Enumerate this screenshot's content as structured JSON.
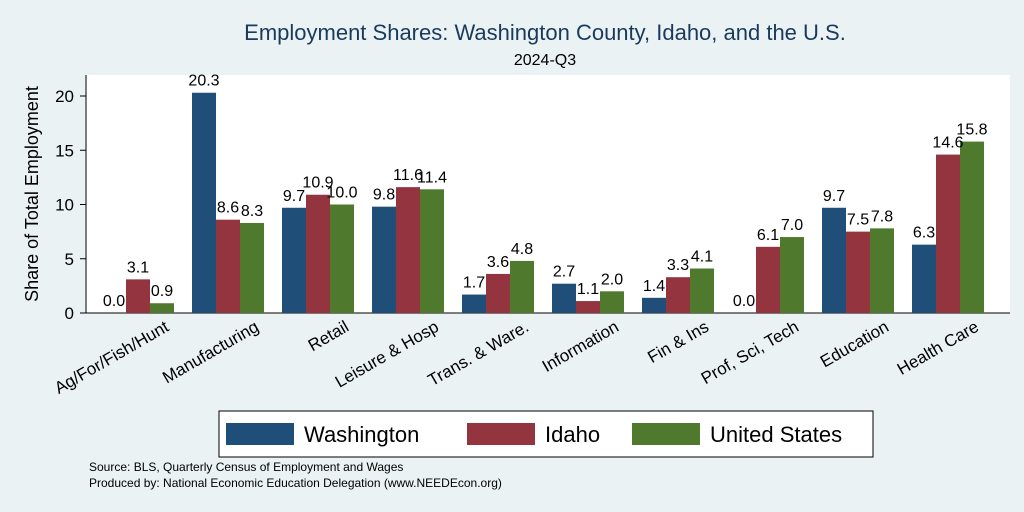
{
  "chart_data": {
    "type": "bar",
    "title": "Employment Shares: Washington County, Idaho, and the U.S.",
    "subtitle": "2024-Q3",
    "ylabel": "Share of Total Employment",
    "xlabel": "",
    "ylim": [
      0,
      22
    ],
    "yticks": [
      0,
      5,
      10,
      15,
      20
    ],
    "categories": [
      "Ag/For/Fish/Hunt",
      "Manufacturing",
      "Retail",
      "Leisure & Hosp",
      "Trans. & Ware.",
      "Information",
      "Fin & Ins",
      "Prof, Sci, Tech",
      "Education",
      "Health Care"
    ],
    "series": [
      {
        "name": "Washington",
        "color": "#1f4e79",
        "values": [
          0.0,
          20.3,
          9.7,
          9.8,
          1.7,
          2.7,
          1.4,
          0.0,
          9.7,
          6.3
        ],
        "labels": [
          "0.0",
          "20.3",
          "9.7",
          "9.8",
          "1.7",
          "2.7",
          "1.4",
          "0.0",
          "9.7",
          "6.3"
        ]
      },
      {
        "name": "Idaho",
        "color": "#93343f",
        "values": [
          3.1,
          8.6,
          10.9,
          11.6,
          3.6,
          1.1,
          3.3,
          6.1,
          7.5,
          14.6
        ],
        "labels": [
          "3.1",
          "8.6",
          "10.9",
          "11.6",
          "3.6",
          "1.1",
          "3.3",
          "6.1",
          "7.5",
          "14.6"
        ]
      },
      {
        "name": "United States",
        "color": "#4f7a2e",
        "values": [
          0.9,
          8.3,
          10.0,
          11.4,
          4.8,
          2.0,
          4.1,
          7.0,
          7.8,
          15.8
        ],
        "labels": [
          "0.9",
          "8.3",
          "10.0",
          "11.4",
          "4.8",
          "2.0",
          "4.1",
          "7.0",
          "7.8",
          "15.8"
        ]
      }
    ],
    "grid": false,
    "legend_position": "bottom"
  },
  "notes": {
    "source": "Source: BLS, Quarterly Census of Employment and Wages",
    "produced": "Produced by: National Economic Education Delegation (www.NEEDEcon.org)"
  }
}
